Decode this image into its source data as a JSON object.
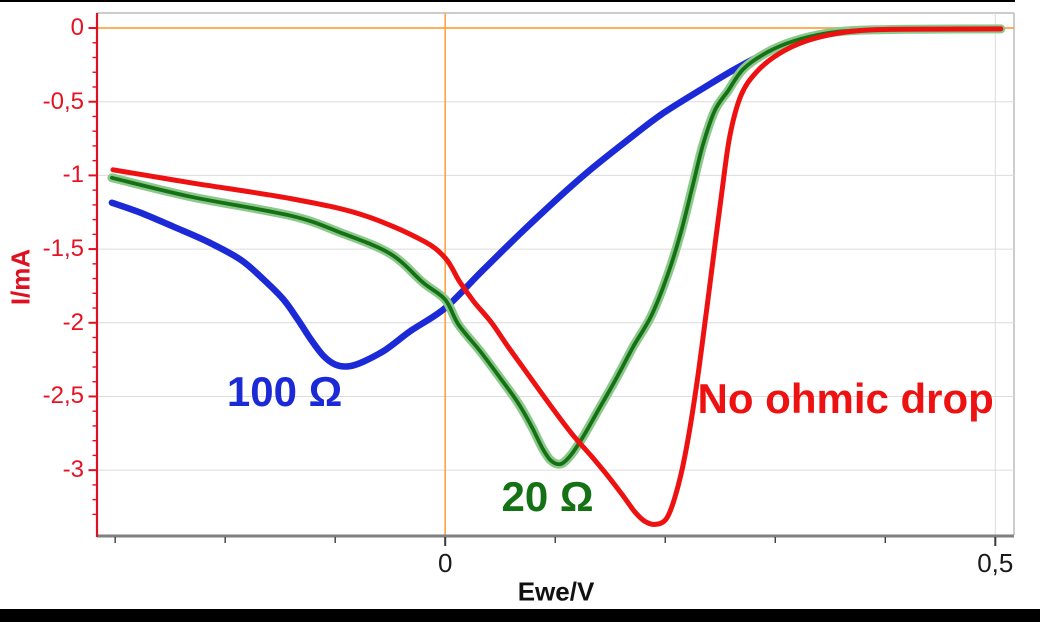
{
  "chart_data": {
    "type": "line",
    "title": "",
    "xlabel": "Ewe/V",
    "ylabel": "I/mA",
    "xlim": [
      -0.3165,
      0.517
    ],
    "ylim": [
      -3.44,
      0.102
    ],
    "grid": true,
    "legend": "none (curves labeled inline)",
    "x_axis": {
      "tick_values": [
        0,
        0.5
      ],
      "tick_labels": [
        "0",
        "0,5"
      ],
      "minor_tick_values": [
        -0.3,
        -0.2,
        -0.1,
        0.1,
        0.2,
        0.3,
        0.4
      ]
    },
    "y_axis": {
      "tick_values": [
        0,
        -0.5,
        -1,
        -1.5,
        -2,
        -2.5,
        -3
      ],
      "tick_labels": [
        "0",
        "-0,5",
        "-1",
        "-1,5",
        "-2",
        "-2,5",
        "-3"
      ],
      "minor_tick_step": 0.1
    },
    "zero_lines": {
      "horizontal_at_i": 0,
      "vertical_at_e": 0,
      "color": "#ffa244"
    },
    "colors": {
      "background": "#ffffff",
      "plot_border": "#bbbbbb",
      "grid": "#dcdcdc",
      "y_axis": "#dd1122",
      "y_tick_labels": "#e81123",
      "x_axis": "#7f7f7f",
      "x_ticks": "#3a3a3a",
      "x_tick_labels": "#1a1a1a",
      "top_bottom_bars": "#000000"
    },
    "series": [
      {
        "name": "100 Ω",
        "color": "#1b2ad6",
        "width": 6.5,
        "points": [
          [
            -0.303,
            -1.185
          ],
          [
            -0.277,
            -1.253
          ],
          [
            -0.247,
            -1.348
          ],
          [
            -0.216,
            -1.45
          ],
          [
            -0.186,
            -1.572
          ],
          [
            -0.165,
            -1.707
          ],
          [
            -0.147,
            -1.842
          ],
          [
            -0.134,
            -1.978
          ],
          [
            -0.122,
            -2.114
          ],
          [
            -0.111,
            -2.222
          ],
          [
            -0.1,
            -2.283
          ],
          [
            -0.088,
            -2.296
          ],
          [
            -0.074,
            -2.263
          ],
          [
            -0.054,
            -2.182
          ],
          [
            -0.031,
            -2.053
          ],
          [
            0.0,
            -1.9
          ],
          [
            0.032,
            -1.66
          ],
          [
            0.069,
            -1.389
          ],
          [
            0.105,
            -1.138
          ],
          [
            0.134,
            -0.949
          ],
          [
            0.166,
            -0.759
          ],
          [
            0.196,
            -0.589
          ],
          [
            0.232,
            -0.42
          ],
          [
            0.262,
            -0.285
          ],
          [
            0.293,
            -0.163
          ],
          [
            0.323,
            -0.081
          ],
          [
            0.353,
            -0.034
          ],
          [
            0.384,
            -0.014
          ],
          [
            0.432,
            -0.007
          ],
          [
            0.505,
            -0.006
          ]
        ]
      },
      {
        "name": "20 Ω",
        "color": "#147114",
        "halo_color": "#8cc88c",
        "width": 3.8,
        "halo_width": 9,
        "points": [
          [
            -0.303,
            -1.016
          ],
          [
            -0.231,
            -1.145
          ],
          [
            -0.14,
            -1.274
          ],
          [
            -0.095,
            -1.389
          ],
          [
            -0.05,
            -1.531
          ],
          [
            -0.02,
            -1.728
          ],
          [
            0.0,
            -1.843
          ],
          [
            0.012,
            -2.012
          ],
          [
            0.032,
            -2.195
          ],
          [
            0.051,
            -2.385
          ],
          [
            0.066,
            -2.541
          ],
          [
            0.078,
            -2.696
          ],
          [
            0.088,
            -2.846
          ],
          [
            0.096,
            -2.934
          ],
          [
            0.105,
            -2.958
          ],
          [
            0.114,
            -2.9
          ],
          [
            0.125,
            -2.778
          ],
          [
            0.139,
            -2.595
          ],
          [
            0.155,
            -2.385
          ],
          [
            0.171,
            -2.161
          ],
          [
            0.187,
            -1.958
          ],
          [
            0.201,
            -1.7
          ],
          [
            0.213,
            -1.42
          ],
          [
            0.224,
            -1.1
          ],
          [
            0.234,
            -0.8
          ],
          [
            0.245,
            -0.56
          ],
          [
            0.257,
            -0.427
          ],
          [
            0.271,
            -0.278
          ],
          [
            0.293,
            -0.163
          ],
          [
            0.317,
            -0.088
          ],
          [
            0.348,
            -0.034
          ],
          [
            0.378,
            -0.014
          ],
          [
            0.425,
            -0.008
          ],
          [
            0.505,
            -0.006
          ]
        ]
      },
      {
        "name": "No ohmic drop",
        "color": "#ed1111",
        "width": 5,
        "points": [
          [
            -0.302,
            -0.962
          ],
          [
            -0.231,
            -1.05
          ],
          [
            -0.14,
            -1.158
          ],
          [
            -0.076,
            -1.266
          ],
          [
            -0.022,
            -1.436
          ],
          [
            0.0,
            -1.56
          ],
          [
            0.013,
            -1.72
          ],
          [
            0.026,
            -1.856
          ],
          [
            0.042,
            -1.998
          ],
          [
            0.057,
            -2.161
          ],
          [
            0.072,
            -2.316
          ],
          [
            0.087,
            -2.472
          ],
          [
            0.103,
            -2.635
          ],
          [
            0.117,
            -2.77
          ],
          [
            0.133,
            -2.906
          ],
          [
            0.148,
            -3.041
          ],
          [
            0.162,
            -3.177
          ],
          [
            0.172,
            -3.28
          ],
          [
            0.181,
            -3.345
          ],
          [
            0.191,
            -3.368
          ],
          [
            0.201,
            -3.33
          ],
          [
            0.209,
            -3.18
          ],
          [
            0.218,
            -2.9
          ],
          [
            0.228,
            -2.45
          ],
          [
            0.237,
            -1.95
          ],
          [
            0.245,
            -1.48
          ],
          [
            0.252,
            -1.08
          ],
          [
            0.259,
            -0.72
          ],
          [
            0.269,
            -0.454
          ],
          [
            0.283,
            -0.298
          ],
          [
            0.303,
            -0.176
          ],
          [
            0.328,
            -0.088
          ],
          [
            0.358,
            -0.034
          ],
          [
            0.39,
            -0.012
          ],
          [
            0.445,
            -0.007
          ],
          [
            0.505,
            -0.006
          ]
        ]
      }
    ],
    "annotations": [
      {
        "text": "100 Ω",
        "color": "#1b2ad6",
        "x": -0.146,
        "y": -2.47
      },
      {
        "text": "20 Ω",
        "color": "#147114",
        "x": 0.093,
        "y": -3.18
      },
      {
        "text": "No ohmic drop",
        "color": "#ed1111",
        "x": 0.364,
        "y": -2.52
      }
    ]
  }
}
